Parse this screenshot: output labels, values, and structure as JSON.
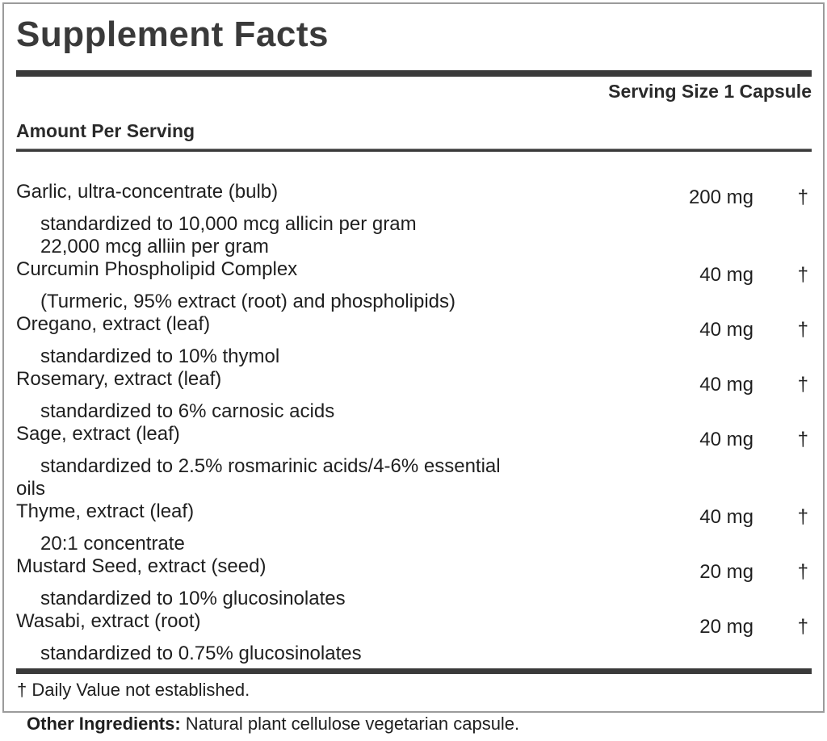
{
  "title": "Supplement Facts",
  "serving_size": "Serving Size 1 Capsule",
  "amount_header": "Amount Per Serving",
  "items": [
    {
      "name": "Garlic, ultra-concentrate (bulb)",
      "amount": "200 mg",
      "dv": "†",
      "subs": [
        "standardized to 10,000 mcg allicin per gram",
        "22,000 mcg alliin per gram"
      ]
    },
    {
      "name": "Curcumin Phospholipid Complex",
      "amount": "40 mg",
      "dv": "†",
      "subs": [
        "(Turmeric, 95% extract (root) and phospholipids)"
      ]
    },
    {
      "name": "Oregano, extract (leaf)",
      "amount": "40 mg",
      "dv": "†",
      "subs": [
        "standardized to 10% thymol"
      ]
    },
    {
      "name": "Rosemary, extract (leaf)",
      "amount": "40 mg",
      "dv": "†",
      "subs": [
        "standardized to 6% carnosic acids"
      ]
    },
    {
      "name": "Sage, extract (leaf)",
      "amount": "40 mg",
      "dv": "†",
      "subs": [
        "standardized to 2.5% rosmarinic acids/4-6% essential oils"
      ]
    },
    {
      "name": "Thyme, extract (leaf)",
      "amount": "40 mg",
      "dv": "†",
      "subs": [
        "20:1 concentrate"
      ]
    },
    {
      "name": "Mustard Seed, extract (seed)",
      "amount": "20 mg",
      "dv": "†",
      "subs": [
        "standardized to 10% glucosinolates"
      ]
    },
    {
      "name": "Wasabi, extract (root)",
      "amount": "20 mg",
      "dv": "†",
      "subs": [
        "standardized to 0.75% glucosinolates"
      ]
    }
  ],
  "footnote": "† Daily Value not established.",
  "other_ingredients": {
    "label": "Other Ingredients:",
    "text": " Natural plant cellulose vegetarian capsule."
  },
  "colors": {
    "bar": "#3a3a3a",
    "border": "#9b9b9b",
    "text": "#1f1f1f"
  }
}
